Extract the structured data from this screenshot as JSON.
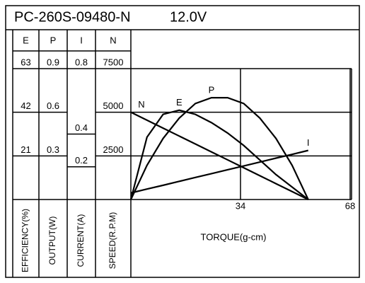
{
  "chart_data": {
    "type": "line",
    "title": "PC-260S-09480-N",
    "subtitle": "12.0V",
    "x_label": "TORQUE(g-cm)",
    "xlim": [
      0,
      68
    ],
    "xticks": [
      34,
      68
    ],
    "axes": [
      {
        "name": "E",
        "label": "EFFICIENCY(%)",
        "lim": [
          0,
          63
        ],
        "ticks": [
          21,
          42,
          63
        ]
      },
      {
        "name": "P",
        "label": "OUTPUT(W)",
        "lim": [
          0,
          0.9
        ],
        "ticks": [
          0.3,
          0.6,
          0.9
        ]
      },
      {
        "name": "I",
        "label": "CURRENT(A)",
        "lim": [
          0,
          0.8
        ],
        "ticks": [
          0.2,
          0.4,
          0.8
        ]
      },
      {
        "name": "N",
        "label": "SPEED(R.P.M)",
        "lim": [
          0,
          7500
        ],
        "ticks": [
          2500,
          5000,
          7500
        ]
      }
    ],
    "x": [
      0,
      5,
      10,
      15,
      20,
      25,
      30,
      35,
      40,
      45,
      50,
      55
    ],
    "series": [
      {
        "name": "E",
        "axis": 0,
        "color": "#000000",
        "values": [
          0,
          30,
          41,
          43,
          41,
          37,
          32,
          26,
          19,
          12,
          6,
          0
        ]
      },
      {
        "name": "P",
        "axis": 1,
        "color": "#000000",
        "values": [
          0,
          0.235,
          0.42,
          0.56,
          0.66,
          0.7,
          0.7,
          0.66,
          0.56,
          0.42,
          0.235,
          0
        ]
      },
      {
        "name": "I",
        "axis": 2,
        "color": "#000000",
        "values": [
          0.04,
          0.064,
          0.087,
          0.111,
          0.135,
          0.158,
          0.182,
          0.205,
          0.229,
          0.253,
          0.276,
          0.3
        ]
      },
      {
        "name": "N",
        "axis": 3,
        "color": "#000000",
        "values": [
          5000,
          4545,
          4091,
          3636,
          3182,
          2727,
          2273,
          1818,
          1364,
          909,
          455,
          0
        ]
      }
    ]
  }
}
